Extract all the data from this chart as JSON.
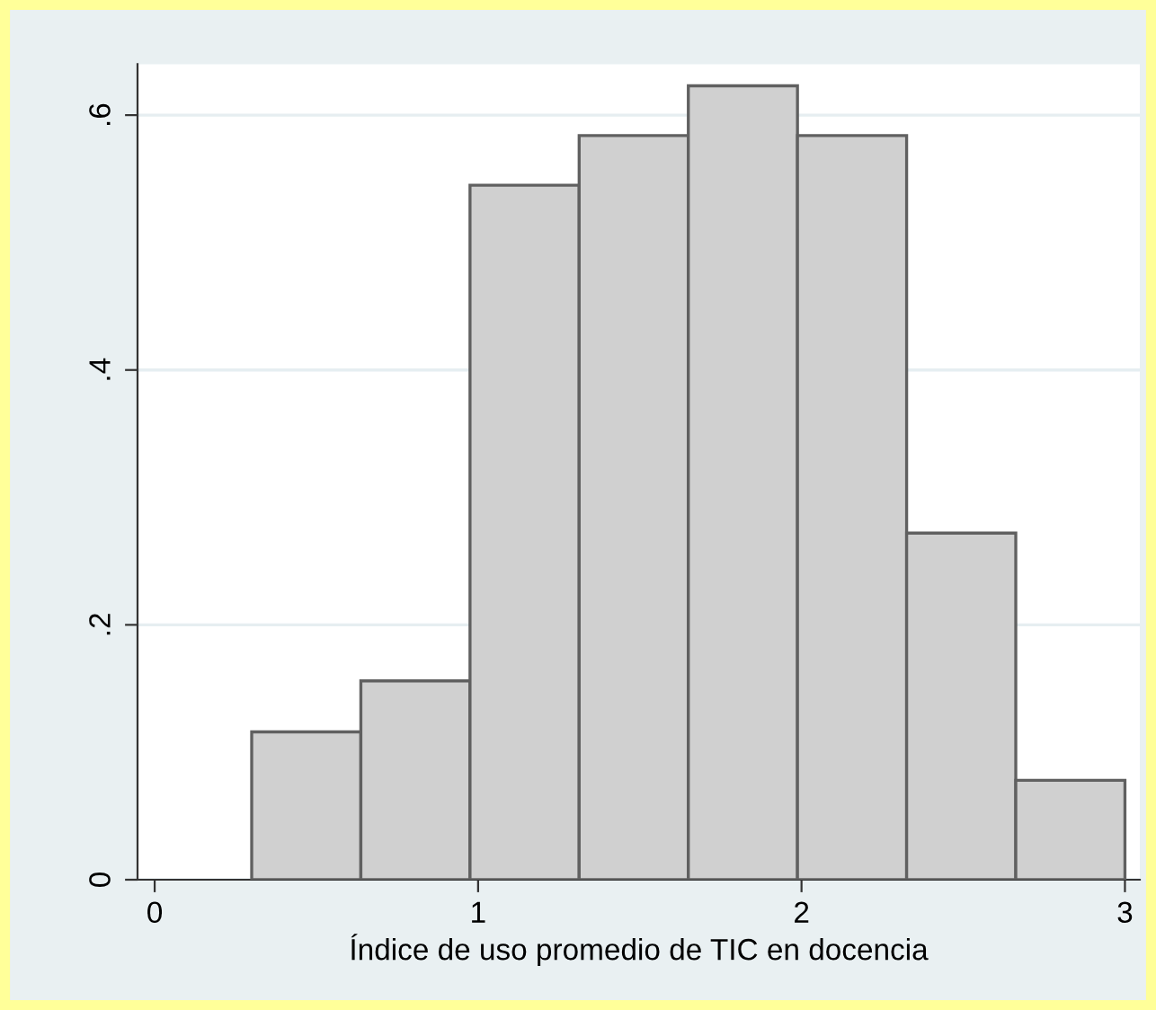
{
  "chart_data": {
    "type": "histogram",
    "xlabel": "Índice de uso promedio de TIC en docencia",
    "bins": [
      0.3,
      0.6375,
      0.975,
      1.3125,
      1.65,
      1.9875,
      2.325,
      2.6625,
      3.0
    ],
    "values": [
      0.116,
      0.156,
      0.545,
      0.584,
      0.623,
      0.584,
      0.272,
      0.078
    ],
    "color": "#d0d0d0",
    "xlim": [
      -0.053,
      3.046
    ],
    "ylim": [
      0,
      0.64
    ],
    "xticks": [
      0,
      1,
      2,
      3
    ],
    "yticks": [
      {
        "value": 0,
        "label": "0"
      },
      {
        "value": 0.2,
        "label": ".2"
      },
      {
        "value": 0.4,
        "label": ".4"
      },
      {
        "value": 0.6,
        "label": ".6"
      }
    ],
    "grid": "y"
  }
}
